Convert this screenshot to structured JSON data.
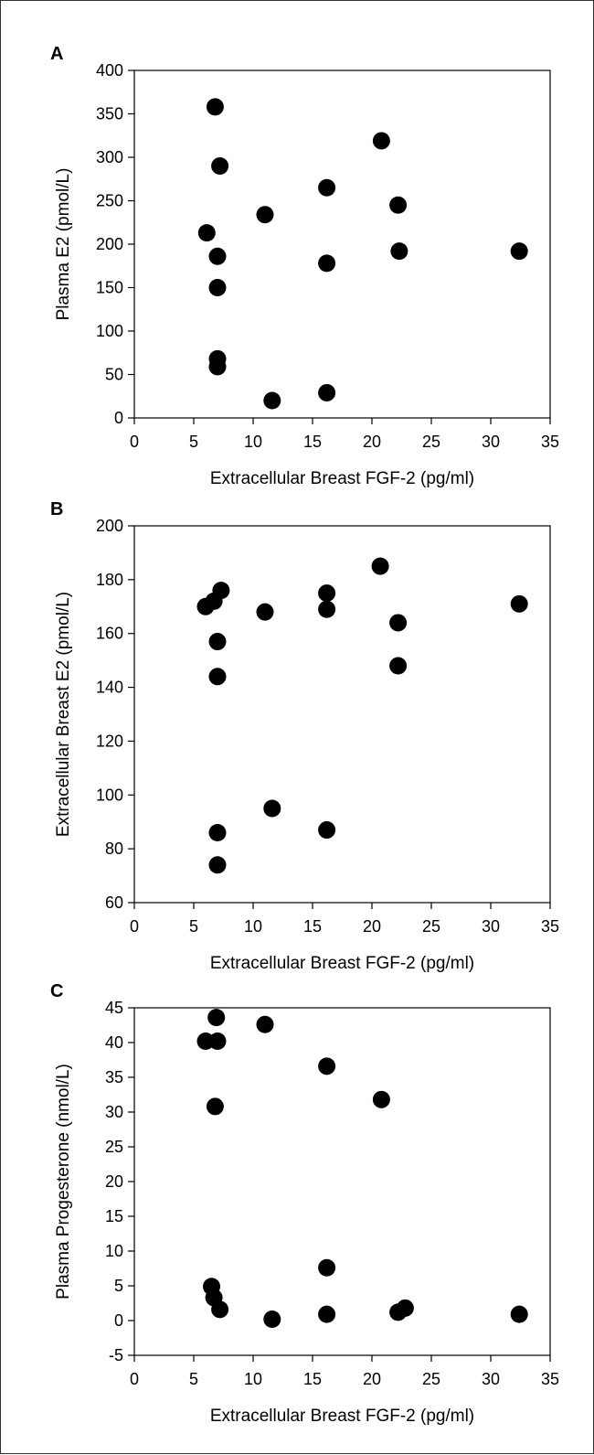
{
  "chart_data": [
    {
      "type": "scatter",
      "panel_label": "A",
      "xlabel": "Extracellular Breast FGF-2 (pg/ml)",
      "ylabel": "Plasma E2 (pmol/L)",
      "xlim": [
        0,
        35
      ],
      "ylim": [
        0,
        400
      ],
      "xticks": [
        0,
        5,
        10,
        15,
        20,
        25,
        30,
        35
      ],
      "yticks": [
        0,
        50,
        100,
        150,
        200,
        250,
        300,
        350,
        400
      ],
      "grid": false,
      "marker_color": "#000000",
      "points": [
        {
          "x": 6.8,
          "y": 358
        },
        {
          "x": 7.2,
          "y": 290
        },
        {
          "x": 20.8,
          "y": 319
        },
        {
          "x": 16.2,
          "y": 265
        },
        {
          "x": 22.2,
          "y": 245
        },
        {
          "x": 11.0,
          "y": 234
        },
        {
          "x": 6.1,
          "y": 213
        },
        {
          "x": 7.0,
          "y": 186
        },
        {
          "x": 22.3,
          "y": 192
        },
        {
          "x": 32.4,
          "y": 192
        },
        {
          "x": 16.2,
          "y": 178
        },
        {
          "x": 7.0,
          "y": 150
        },
        {
          "x": 7.0,
          "y": 68
        },
        {
          "x": 7.0,
          "y": 59
        },
        {
          "x": 11.6,
          "y": 20
        },
        {
          "x": 16.2,
          "y": 29
        }
      ]
    },
    {
      "type": "scatter",
      "panel_label": "B",
      "xlabel": "Extracellular Breast FGF-2 (pg/ml)",
      "ylabel": "Extracellular Breast E2 (pmol/L)",
      "xlim": [
        0,
        35
      ],
      "ylim": [
        60,
        200
      ],
      "xticks": [
        0,
        5,
        10,
        15,
        20,
        25,
        30,
        35
      ],
      "yticks": [
        60,
        80,
        100,
        120,
        140,
        160,
        180,
        200
      ],
      "grid": false,
      "marker_color": "#000000",
      "points": [
        {
          "x": 6.0,
          "y": 170
        },
        {
          "x": 6.7,
          "y": 172
        },
        {
          "x": 7.3,
          "y": 176
        },
        {
          "x": 7.0,
          "y": 157
        },
        {
          "x": 7.0,
          "y": 144
        },
        {
          "x": 11.0,
          "y": 168
        },
        {
          "x": 16.2,
          "y": 175
        },
        {
          "x": 16.2,
          "y": 169
        },
        {
          "x": 20.7,
          "y": 185
        },
        {
          "x": 22.2,
          "y": 164
        },
        {
          "x": 22.2,
          "y": 148
        },
        {
          "x": 32.4,
          "y": 171
        },
        {
          "x": 7.0,
          "y": 86
        },
        {
          "x": 7.0,
          "y": 74
        },
        {
          "x": 11.6,
          "y": 95
        },
        {
          "x": 16.2,
          "y": 87
        }
      ]
    },
    {
      "type": "scatter",
      "panel_label": "C",
      "xlabel": "Extracellular Breast FGF-2 (pg/ml)",
      "ylabel": "Plasma Progesterone (nmol/L)",
      "xlim": [
        0,
        35
      ],
      "ylim": [
        -5,
        45
      ],
      "xticks": [
        0,
        5,
        10,
        15,
        20,
        25,
        30,
        35
      ],
      "yticks": [
        -5,
        0,
        5,
        10,
        15,
        20,
        25,
        30,
        35,
        40,
        45
      ],
      "grid": false,
      "marker_color": "#000000",
      "points": [
        {
          "x": 6.0,
          "y": 40.2
        },
        {
          "x": 6.9,
          "y": 43.6
        },
        {
          "x": 7.0,
          "y": 40.2
        },
        {
          "x": 11.0,
          "y": 42.6
        },
        {
          "x": 16.2,
          "y": 36.6
        },
        {
          "x": 6.8,
          "y": 30.8
        },
        {
          "x": 20.8,
          "y": 31.8
        },
        {
          "x": 16.2,
          "y": 7.6
        },
        {
          "x": 6.5,
          "y": 4.9
        },
        {
          "x": 6.7,
          "y": 3.3
        },
        {
          "x": 7.2,
          "y": 1.6
        },
        {
          "x": 11.6,
          "y": 0.2
        },
        {
          "x": 16.2,
          "y": 0.9
        },
        {
          "x": 22.2,
          "y": 1.2
        },
        {
          "x": 22.8,
          "y": 1.8
        },
        {
          "x": 32.4,
          "y": 0.9
        }
      ]
    }
  ]
}
